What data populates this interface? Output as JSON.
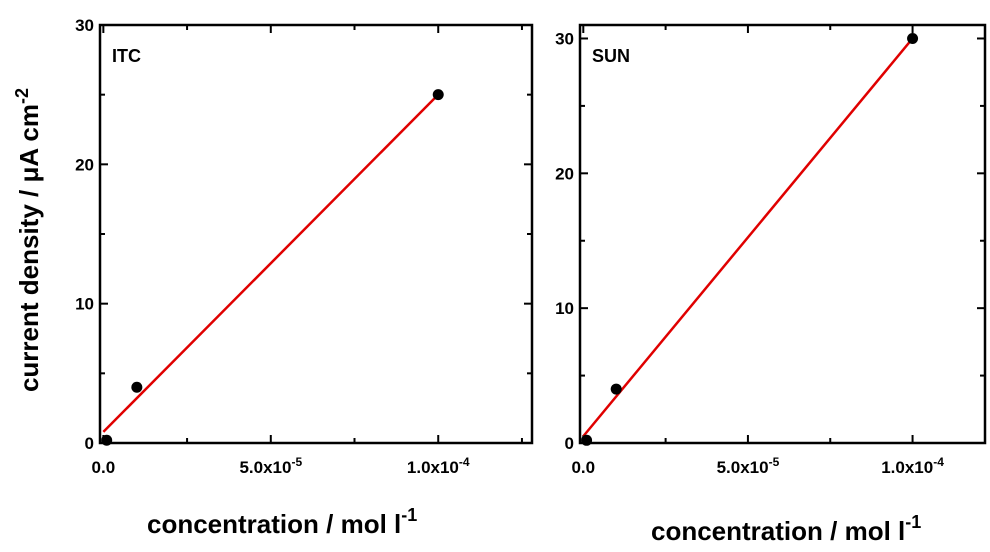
{
  "figure": {
    "ylabel": {
      "main": "current density / ",
      "mu": "μ",
      "unit": "A cm",
      "sup": "-2"
    },
    "xlabel": {
      "main": "concentration / mol l",
      "sup": "-1"
    }
  },
  "chart_data": [
    {
      "type": "scatter",
      "panel_label": "ITC",
      "xlim": [
        -1e-06,
        0.000128
      ],
      "ylim": [
        0,
        30
      ],
      "x_ticks": [
        {
          "mant": "0.0",
          "exp": ""
        },
        {
          "mant": "5.0x10",
          "exp": "-5"
        },
        {
          "mant": "1.0x10",
          "exp": "-4"
        }
      ],
      "y_ticks": [
        "0",
        "10",
        "20",
        "30"
      ],
      "series": [
        {
          "x": [
            1e-06,
            1e-05,
            0.0001
          ],
          "y": [
            0.2,
            4,
            25
          ]
        }
      ],
      "fit_line": {
        "x": [
          0,
          0.0001
        ],
        "y": [
          0.8,
          25
        ],
        "color": "#e00000"
      },
      "marker_color": "#000000"
    },
    {
      "type": "scatter",
      "panel_label": "SUN",
      "xlim": [
        -1e-06,
        0.000122
      ],
      "ylim": [
        0,
        31
      ],
      "x_ticks": [
        {
          "mant": "0.0",
          "exp": ""
        },
        {
          "mant": "5.0x10",
          "exp": "-5"
        },
        {
          "mant": "1.0x10",
          "exp": "-4"
        }
      ],
      "y_ticks": [
        "0",
        "10",
        "20",
        "30"
      ],
      "series": [
        {
          "x": [
            1e-06,
            1e-05,
            0.0001
          ],
          "y": [
            0.2,
            4,
            30
          ]
        }
      ],
      "fit_line": {
        "x": [
          0,
          0.0001
        ],
        "y": [
          0.5,
          30
        ],
        "color": "#e00000"
      },
      "marker_color": "#000000"
    }
  ]
}
